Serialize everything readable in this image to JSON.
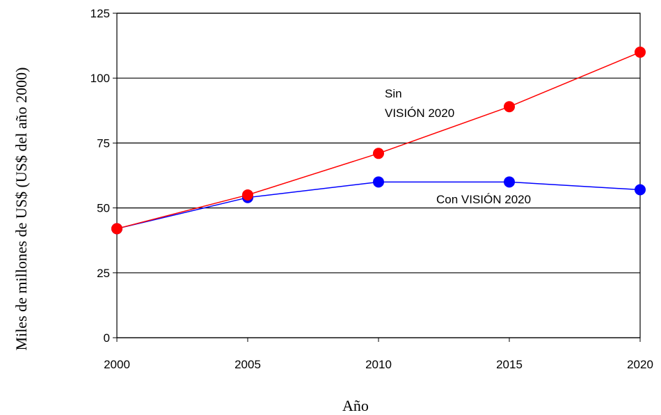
{
  "chart_data": {
    "type": "line",
    "x_label": "Año",
    "y_label": "Miles de millones de US$ (US$ del año 2000)",
    "x": [
      2000,
      2005,
      2010,
      2015,
      2020
    ],
    "xlim": [
      2000,
      2020
    ],
    "xticks": [
      2000,
      2005,
      2010,
      2015,
      2020
    ],
    "ylim": [
      0,
      125
    ],
    "yticks": [
      0,
      25,
      50,
      75,
      100,
      125
    ],
    "grid": true,
    "series": [
      {
        "color": "#0000ff",
        "values": [
          42,
          54,
          60,
          60,
          57
        ]
      },
      {
        "color": "#ff0000",
        "values": [
          42,
          55,
          71,
          89,
          110
        ]
      }
    ],
    "annotations": [
      {
        "text": [
          "Con VISIÓN 2020"
        ]
      },
      {
        "text": [
          "Sin",
          "VISIÓN 2020"
        ]
      }
    ]
  }
}
